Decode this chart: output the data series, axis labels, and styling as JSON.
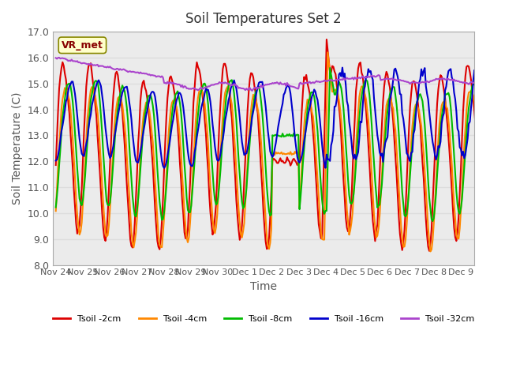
{
  "title": "Soil Temperatures Set 2",
  "xlabel": "Time",
  "ylabel": "Soil Temperature (C)",
  "ylim": [
    8.0,
    17.0
  ],
  "yticks": [
    8.0,
    9.0,
    10.0,
    11.0,
    12.0,
    13.0,
    14.0,
    15.0,
    16.0,
    17.0
  ],
  "xtick_labels": [
    "Nov 24",
    "Nov 25",
    "Nov 26",
    "Nov 27",
    "Nov 28",
    "Nov 29",
    "Nov 30",
    "Dec 1",
    "Dec 2",
    "Dec 3",
    "Dec 4",
    "Dec 5",
    "Dec 6",
    "Dec 7",
    "Dec 8",
    "Dec 9"
  ],
  "series_colors": [
    "#dd0000",
    "#ff8800",
    "#00bb00",
    "#0000cc",
    "#aa44cc"
  ],
  "series_labels": [
    "Tsoil -2cm",
    "Tsoil -4cm",
    "Tsoil -8cm",
    "Tsoil -16cm",
    "Tsoil -32cm"
  ],
  "annotation_text": "VR_met",
  "line_width": 1.5,
  "background_color": "#ffffff",
  "grid_color": "#dddddd",
  "num_points": 384
}
